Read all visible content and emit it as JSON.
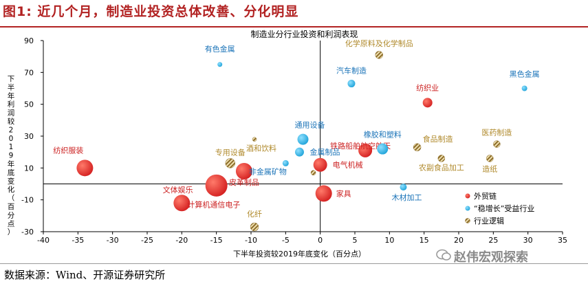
{
  "header": {
    "title": "图1:  近几个月，制造业投资总体改善、分化明显"
  },
  "footer": {
    "source": "数据来源：Wind、开源证券研究所",
    "watermark": "赵伟宏观探索"
  },
  "colors": {
    "title": "#b22222",
    "red": "#d42020",
    "blue": "#1fa3d9",
    "gold": "#c9a24a",
    "red_label": "#cc2222",
    "blue_label": "#1a73b8",
    "gold_label": "#b08a2c"
  },
  "chart_data": {
    "type": "scatter",
    "title": "制造业分行业投资和利润表现",
    "xlabel": "下半年投资较2019年底变化（百分点）",
    "ylabel": "下半年利润较2019年底变化（百分点）",
    "xlim": [
      -40,
      35
    ],
    "ylim": [
      -30,
      90
    ],
    "xticks": [
      "-40",
      "-35",
      "-30",
      "-25",
      "-20",
      "-15",
      "-10",
      "-5",
      "0",
      "5",
      "10",
      "15",
      "20",
      "25",
      "30",
      "35"
    ],
    "yticks": [
      "90",
      "70",
      "50",
      "30",
      "10",
      "-10",
      "-30"
    ],
    "legend_position": "bottom-right",
    "legend": [
      {
        "group": "red",
        "label": "外贸链"
      },
      {
        "group": "blue",
        "label": "“稳增长”受益行业"
      },
      {
        "group": "gold",
        "label": "行业逻辑"
      }
    ],
    "points": [
      {
        "name": "纺织服装",
        "x": -34,
        "y": 10,
        "group": "red",
        "size": 12
      },
      {
        "name": "文体娱乐",
        "x": -15,
        "y": -1,
        "group": "red",
        "size": 16
      },
      {
        "name": "计算机通信电子",
        "x": -20,
        "y": -12,
        "group": "red",
        "size": 12
      },
      {
        "name": "皮革制品",
        "x": -11,
        "y": 8,
        "group": "red",
        "size": 12
      },
      {
        "name": "电气机械",
        "x": 0,
        "y": 12,
        "group": "red",
        "size": 10
      },
      {
        "name": "家具",
        "x": 0.5,
        "y": -6,
        "group": "red",
        "size": 12
      },
      {
        "name": "铁路船舶航空航天",
        "x": 6.5,
        "y": 21,
        "group": "red",
        "size": 10
      },
      {
        "name": "纺织业",
        "x": 15.5,
        "y": 51,
        "group": "red",
        "size": 7
      },
      {
        "name": "有色金属",
        "x": -14.5,
        "y": 75,
        "group": "blue",
        "size": 3.5
      },
      {
        "name": "汽车制造",
        "x": 4.5,
        "y": 63,
        "group": "blue",
        "size": 5.5
      },
      {
        "name": "黑色金属",
        "x": 29.5,
        "y": 60,
        "group": "blue",
        "size": 4
      },
      {
        "name": "通用设备",
        "x": -2.5,
        "y": 28,
        "group": "blue",
        "size": 8
      },
      {
        "name": "金属制品",
        "x": -3,
        "y": 20,
        "group": "blue",
        "size": 6.5
      },
      {
        "name": "非金属矿物",
        "x": -5,
        "y": 13,
        "group": "blue",
        "size": 4.5
      },
      {
        "name": "橡胶和塑料",
        "x": 9,
        "y": 22,
        "group": "blue",
        "size": 8
      },
      {
        "name": "木材加工",
        "x": 12,
        "y": -2,
        "group": "blue",
        "size": 5
      },
      {
        "name": "化学原料及化学制品",
        "x": 8.5,
        "y": 81,
        "group": "gold",
        "size": 5.5
      },
      {
        "name": "酒和饮料",
        "x": -9.5,
        "y": 28,
        "group": "gold",
        "size": 3
      },
      {
        "name": "专用设备",
        "x": -13,
        "y": 13,
        "group": "gold",
        "size": 7
      },
      {
        "name": "食品制造",
        "x": 14,
        "y": 23,
        "group": "gold",
        "size": 5.5
      },
      {
        "name": "农副食品加工",
        "x": 17.5,
        "y": 16,
        "group": "gold",
        "size": 5
      },
      {
        "name": "医药制造",
        "x": 25.5,
        "y": 25,
        "group": "gold",
        "size": 5
      },
      {
        "name": "造纸",
        "x": 24.5,
        "y": 16,
        "group": "gold",
        "size": 5
      },
      {
        "name": "化纤",
        "x": -9.5,
        "y": -27,
        "group": "gold",
        "size": 6
      },
      {
        "name": "",
        "x": -1,
        "y": 7,
        "group": "gold",
        "size": 3.5
      }
    ]
  }
}
